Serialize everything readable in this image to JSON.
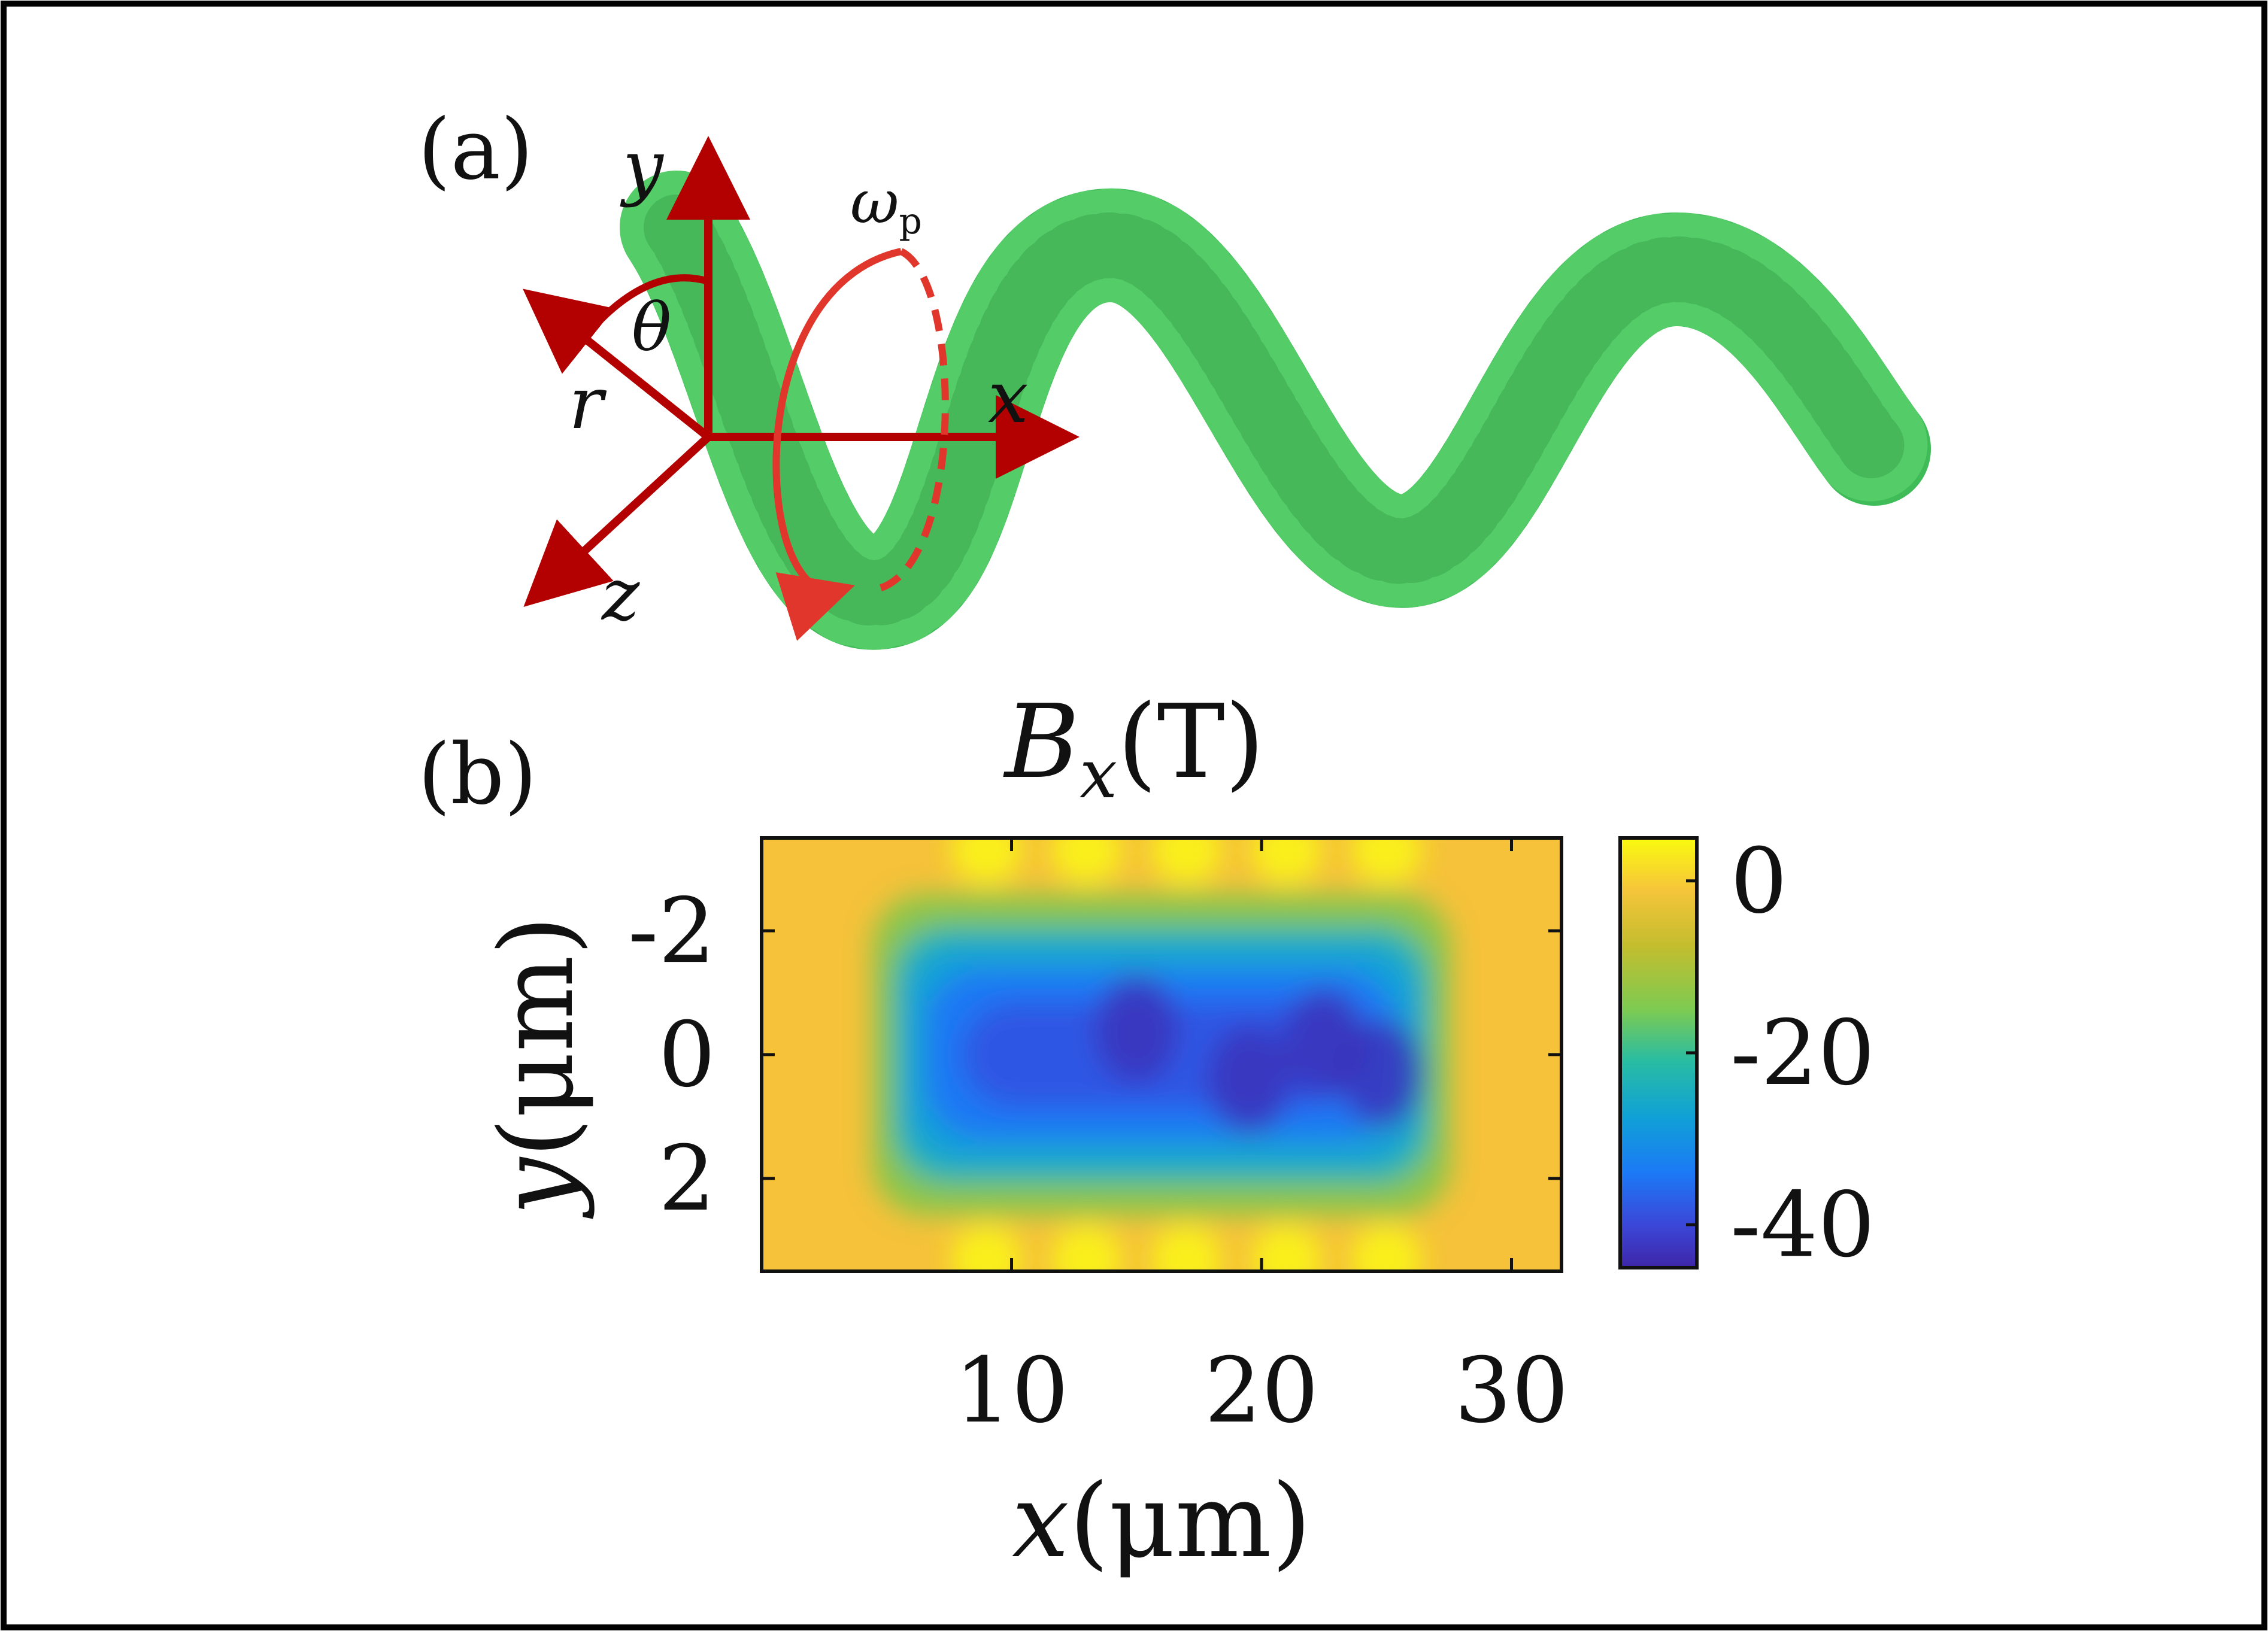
{
  "figure": {
    "panel_a_label": "(a)",
    "panel_b_label": "(b)",
    "axes_3d": {
      "x_label": "x",
      "y_label": "y",
      "z_label": "z",
      "r_label": "r",
      "theta_label": "θ",
      "omega_label": "ω",
      "omega_subscript": "p"
    },
    "colors": {
      "axis_red": "#b30000",
      "rotation_red": "#e0362c",
      "helix_green": "#2fb64a",
      "helix_dark": "#127a2a"
    }
  },
  "chart_data": {
    "type": "heatmap",
    "title": "B_x(T)",
    "title_main": "B",
    "title_sub": "x",
    "title_unit": "(T)",
    "xlabel": "x(μm)",
    "xlabel_var": "x",
    "xlabel_unit": "(μm)",
    "ylabel": "y(μm)",
    "ylabel_var": "y",
    "ylabel_unit": "(μm)",
    "xlim": [
      0,
      32
    ],
    "ylim": [
      -3.5,
      3.5
    ],
    "y_inverted": true,
    "x_ticks": [
      10,
      20,
      30
    ],
    "x_tick_labels": [
      "10",
      "20",
      "30"
    ],
    "y_ticks": [
      -2,
      0,
      2
    ],
    "y_tick_labels": [
      "-2",
      "0",
      "2"
    ],
    "colorbar": {
      "range": [
        -45,
        5
      ],
      "ticks": [
        0,
        -20,
        -40
      ],
      "tick_labels": [
        "0",
        "-20",
        "-40"
      ],
      "colormap": "parula"
    },
    "field_model": {
      "background_value": 0,
      "core_min_value": -44,
      "core_x_range": [
        6,
        26
      ],
      "core_center_y": 0,
      "core_halfwidth_y": 1.9
    }
  }
}
